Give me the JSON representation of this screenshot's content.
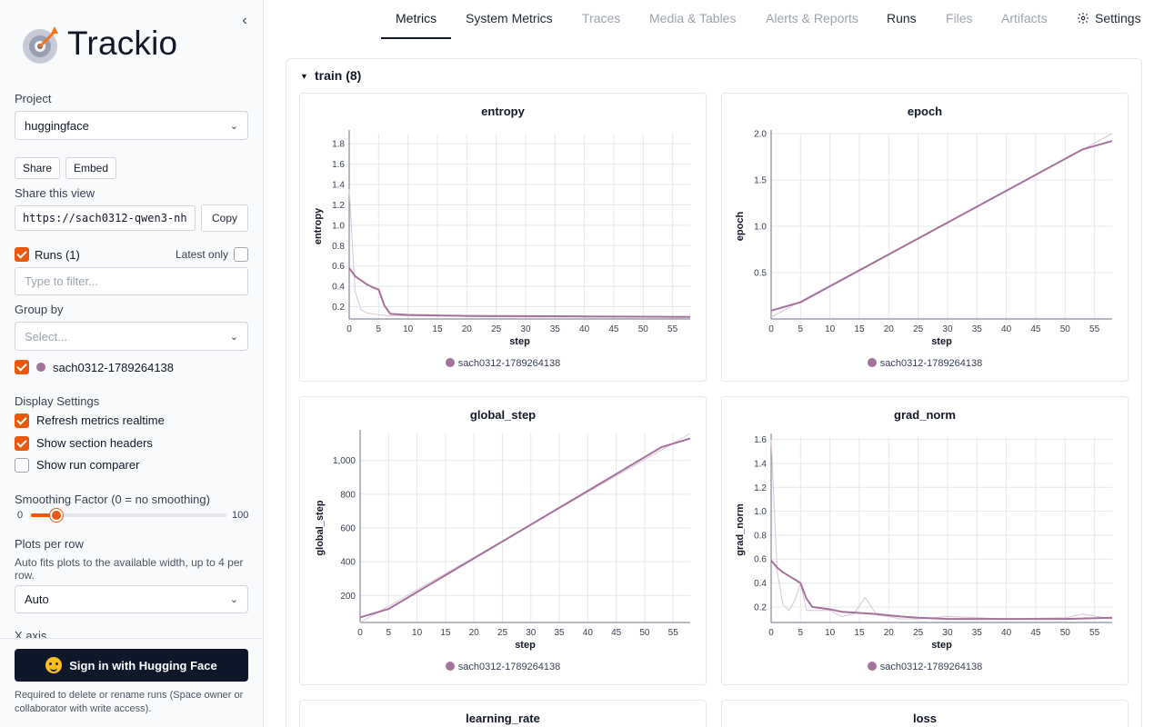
{
  "app": {
    "logo_text": "Trackio"
  },
  "sidebar": {
    "project_label": "Project",
    "project_value": "huggingface",
    "share_button": "Share",
    "embed_button": "Embed",
    "share_view_label": "Share this view",
    "share_url": "https://sach0312-qwen3-nh",
    "copy_button": "Copy",
    "runs_label": "Runs (1)",
    "latest_only_label": "Latest only",
    "filter_placeholder": "Type to filter...",
    "group_by_label": "Group by",
    "group_by_placeholder": "Select...",
    "run_name": "sach0312-1789264138",
    "display_settings_label": "Display Settings",
    "refresh_label": "Refresh metrics realtime",
    "section_headers_label": "Show section headers",
    "run_comparer_label": "Show run comparer",
    "smoothing_label": "Smoothing Factor (0 = no smoothing)",
    "smoothing_min": "0",
    "smoothing_max": "100",
    "smoothing_value": 13,
    "plots_per_row_label": "Plots per row",
    "plots_per_row_help": "Auto fits plots to the available width, up to 4 per row.",
    "plots_per_row_value": "Auto",
    "xaxis_label": "X axis",
    "signin_button": "Sign in with Hugging Face",
    "signin_note": "Required to delete or rename runs (Space owner or collaborator with write access)."
  },
  "tabs": [
    {
      "label": "Metrics",
      "state": "active"
    },
    {
      "label": "System Metrics",
      "state": "enabled"
    },
    {
      "label": "Traces",
      "state": "disabled"
    },
    {
      "label": "Media & Tables",
      "state": "disabled"
    },
    {
      "label": "Alerts & Reports",
      "state": "disabled"
    },
    {
      "label": "Runs",
      "state": "enabled"
    },
    {
      "label": "Files",
      "state": "disabled"
    },
    {
      "label": "Artifacts",
      "state": "disabled"
    },
    {
      "label": "Settings",
      "state": "enabled",
      "icon": "gear-icon"
    }
  ],
  "section": {
    "title": "train (8)"
  },
  "colors": {
    "accent": "#ea580c",
    "run": "#a4719b",
    "raw": "#d8c6d4"
  },
  "chart_data": [
    {
      "type": "line",
      "title": "entropy",
      "xlabel": "step",
      "ylabel": "entropy",
      "xlim": [
        0,
        58
      ],
      "ylim": [
        0.08,
        1.9
      ],
      "xticks": [
        0,
        5,
        10,
        15,
        20,
        25,
        30,
        35,
        40,
        45,
        50,
        55
      ],
      "yticks": [
        0.2,
        0.4,
        0.6,
        0.8,
        1.0,
        1.2,
        1.4,
        1.6,
        1.8
      ],
      "legend": [
        "sach0312-1789264138"
      ],
      "series": [
        {
          "name": "sach0312-1789264138",
          "x": [
            0,
            1,
            2,
            3,
            4,
            5,
            6,
            7,
            10,
            15,
            20,
            30,
            40,
            50,
            58
          ],
          "y": [
            0.58,
            0.5,
            0.46,
            0.42,
            0.39,
            0.37,
            0.21,
            0.13,
            0.12,
            0.115,
            0.11,
            0.108,
            0.105,
            0.102,
            0.1
          ]
        },
        {
          "name": "sach0312-1789264138",
          "raw": true,
          "x": [
            0,
            1,
            2,
            3,
            5,
            7,
            10,
            20,
            30,
            40,
            50,
            58
          ],
          "y": [
            1.35,
            0.35,
            0.17,
            0.14,
            0.12,
            0.11,
            0.11,
            0.105,
            0.1,
            0.1,
            0.1,
            0.1
          ]
        }
      ]
    },
    {
      "type": "line",
      "title": "epoch",
      "xlabel": "step",
      "ylabel": "epoch",
      "xlim": [
        0,
        58
      ],
      "ylim": [
        0,
        2.0
      ],
      "xticks": [
        0,
        5,
        10,
        15,
        20,
        25,
        30,
        35,
        40,
        45,
        50,
        55
      ],
      "yticks": [
        0.5,
        1.0,
        1.5,
        2.0
      ],
      "legend": [
        "sach0312-1789264138"
      ],
      "series": [
        {
          "name": "sach0312-1789264138",
          "x": [
            0,
            5,
            53,
            58
          ],
          "y": [
            0.09,
            0.18,
            1.83,
            1.92
          ]
        },
        {
          "name": "sach0312-1789264138",
          "raw": true,
          "x": [
            0,
            58
          ],
          "y": [
            0.02,
            2.0
          ]
        }
      ]
    },
    {
      "type": "line",
      "title": "global_step",
      "xlabel": "step",
      "ylabel": "global_step",
      "xlim": [
        0,
        58
      ],
      "ylim": [
        40,
        1160
      ],
      "xticks": [
        0,
        5,
        10,
        15,
        20,
        25,
        30,
        35,
        40,
        45,
        50,
        55
      ],
      "yticks": [
        200,
        400,
        600,
        800,
        1000
      ],
      "ytick_labels": [
        "200",
        "400",
        "600",
        "800",
        "1,000"
      ],
      "legend": [
        "sach0312-1789264138"
      ],
      "series": [
        {
          "name": "sach0312-1789264138",
          "x": [
            0,
            5,
            53,
            58
          ],
          "y": [
            70,
            120,
            1080,
            1130
          ]
        },
        {
          "name": "sach0312-1789264138",
          "raw": true,
          "x": [
            0,
            58
          ],
          "y": [
            40,
            1160
          ]
        }
      ]
    },
    {
      "type": "line",
      "title": "grad_norm",
      "xlabel": "step",
      "ylabel": "grad_norm",
      "xlim": [
        0,
        58
      ],
      "ylim": [
        0.07,
        1.62
      ],
      "xticks": [
        0,
        5,
        10,
        15,
        20,
        25,
        30,
        35,
        40,
        45,
        50,
        55
      ],
      "yticks": [
        0.2,
        0.4,
        0.6,
        0.8,
        1.0,
        1.2,
        1.4,
        1.6
      ],
      "legend": [
        "sach0312-1789264138"
      ],
      "series": [
        {
          "name": "sach0312-1789264138",
          "x": [
            0,
            1,
            2,
            3,
            4,
            5,
            6,
            7,
            10,
            12,
            15,
            18,
            20,
            22,
            25,
            30,
            40,
            50,
            58
          ],
          "y": [
            0.59,
            0.53,
            0.49,
            0.46,
            0.43,
            0.4,
            0.27,
            0.2,
            0.18,
            0.16,
            0.15,
            0.14,
            0.13,
            0.12,
            0.11,
            0.1,
            0.1,
            0.1,
            0.11
          ]
        },
        {
          "name": "sach0312-1789264138",
          "raw": true,
          "x": [
            0,
            1,
            2,
            3,
            4,
            5,
            6,
            8,
            10,
            12,
            14,
            16,
            18,
            20,
            22,
            25,
            30,
            40,
            50,
            53,
            58
          ],
          "y": [
            1.6,
            0.5,
            0.22,
            0.17,
            0.25,
            0.4,
            0.17,
            0.17,
            0.17,
            0.12,
            0.14,
            0.28,
            0.13,
            0.12,
            0.1,
            0.1,
            0.12,
            0.1,
            0.11,
            0.14,
            0.1
          ]
        }
      ]
    },
    {
      "type": "line",
      "title": "learning_rate"
    },
    {
      "type": "line",
      "title": "loss"
    }
  ]
}
